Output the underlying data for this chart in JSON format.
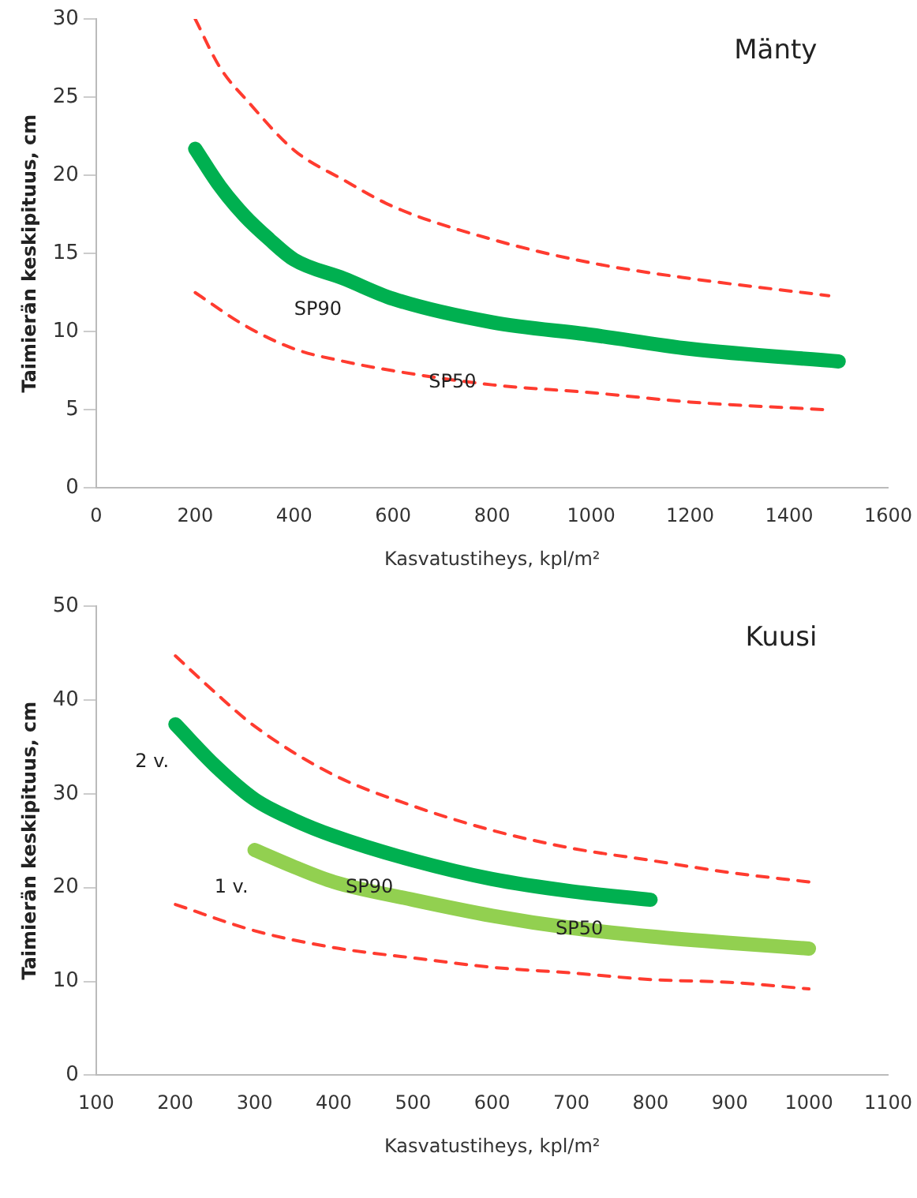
{
  "chart_data": [
    {
      "type": "line",
      "title": "Mänty",
      "xlabel": "Kasvatustiheys, kpl/m²",
      "ylabel": "Taimierän keskipituus, cm",
      "xlim": [
        0,
        1600
      ],
      "xticks": [
        0,
        200,
        400,
        600,
        800,
        1000,
        1200,
        1400,
        1600
      ],
      "ylim": [
        0,
        30
      ],
      "yticks": [
        0,
        5,
        10,
        15,
        20,
        25,
        30
      ],
      "grid": false,
      "legend": false,
      "marker": "none",
      "series": [
        {
          "color": "#00b050",
          "line_style": "solid",
          "x": [
            200,
            250,
            300,
            350,
            400,
            500,
            600,
            800,
            1000,
            1200,
            1500
          ],
          "values": [
            21.7,
            19.3,
            17.4,
            15.9,
            14.6,
            13.4,
            12.1,
            10.6,
            9.8,
            8.9,
            8.1
          ]
        },
        {
          "color": "#ff3b2f",
          "line_style": "dashed",
          "x": [
            200,
            250,
            310,
            400,
            500,
            600,
            800,
            1000,
            1200,
            1480
          ],
          "values": [
            30,
            26.9,
            24.6,
            21.6,
            19.7,
            18,
            15.9,
            14.4,
            13.4,
            12.3
          ]
        },
        {
          "color": "#ff3b2f",
          "line_style": "dashed",
          "x": [
            200,
            300,
            400,
            500,
            600,
            800,
            1000,
            1200,
            1480
          ],
          "values": [
            12.5,
            10.4,
            8.9,
            8.1,
            7.5,
            6.6,
            6.1,
            5.5,
            5
          ]
        }
      ],
      "annotations": [
        "SP90",
        "SP50"
      ]
    },
    {
      "type": "line",
      "title": "Kuusi",
      "xlabel": "Kasvatustiheys, kpl/m²",
      "ylabel": "Taimierän keskipituus, cm",
      "xlim": [
        100,
        1100
      ],
      "xticks": [
        100,
        200,
        300,
        400,
        500,
        600,
        700,
        800,
        900,
        1000,
        1100
      ],
      "ylim": [
        0,
        50
      ],
      "yticks": [
        0,
        10,
        20,
        30,
        40,
        50
      ],
      "grid": false,
      "legend": false,
      "marker": "none",
      "series": [
        {
          "name": "2 v.",
          "color": "#00b050",
          "line_style": "solid",
          "x": [
            200,
            250,
            300,
            350,
            400,
            500,
            600,
            700,
            800
          ],
          "values": [
            37.4,
            33,
            29.4,
            27.2,
            25.5,
            22.9,
            20.9,
            19.6,
            18.7
          ]
        },
        {
          "name": "1 v.",
          "color": "#92d050",
          "line_style": "solid",
          "x": [
            300,
            350,
            400,
            500,
            600,
            700,
            800,
            900,
            1000
          ],
          "values": [
            24,
            22.2,
            20.6,
            18.7,
            17,
            15.7,
            14.8,
            14.1,
            13.5
          ]
        },
        {
          "color": "#ff3b2f",
          "line_style": "dashed",
          "x": [
            200,
            250,
            300,
            400,
            500,
            600,
            700,
            800,
            900,
            1000
          ],
          "values": [
            44.7,
            40.8,
            37.2,
            32,
            28.7,
            26.1,
            24.2,
            22.9,
            21.6,
            20.6
          ]
        },
        {
          "color": "#ff3b2f",
          "line_style": "dashed",
          "x": [
            200,
            300,
            400,
            500,
            600,
            700,
            800,
            900,
            1000
          ],
          "values": [
            18.2,
            15.4,
            13.6,
            12.5,
            11.5,
            10.9,
            10.2,
            9.9,
            9.2
          ]
        }
      ],
      "annotations": [
        "SP90",
        "SP50"
      ]
    }
  ]
}
